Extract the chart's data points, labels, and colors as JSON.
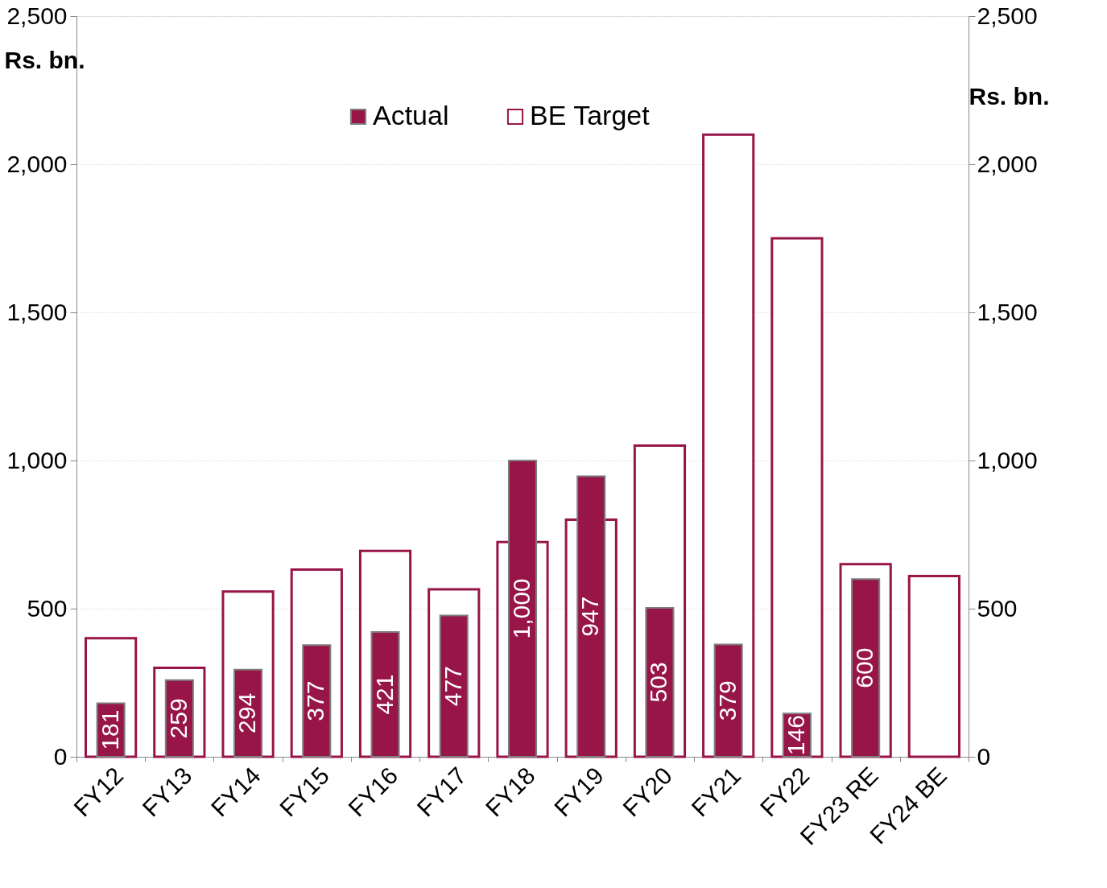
{
  "chart_data": {
    "type": "bar",
    "categories": [
      "FY12",
      "FY13",
      "FY14",
      "FY15",
      "FY16",
      "FY17",
      "FY18",
      "FY19",
      "FY20",
      "FY21",
      "FY22",
      "FY23 RE",
      "FY24 BE"
    ],
    "series": [
      {
        "name": "Actual",
        "color": "#981548",
        "values": [
          181,
          259,
          294,
          377,
          421,
          477,
          1000,
          947,
          503,
          379,
          146,
          600,
          null
        ],
        "value_labels": [
          "181",
          "259",
          "294",
          "377",
          "421",
          "477",
          "1,000",
          "947",
          "503",
          "379",
          "146",
          "600",
          null
        ]
      },
      {
        "name": "BE Target",
        "color": "#981548",
        "values": [
          400,
          300,
          558,
          632,
          695,
          565,
          725,
          800,
          1050,
          2100,
          1750,
          650,
          610
        ]
      }
    ],
    "ylabel": "Rs. bn.",
    "y2label": "Rs. bn.",
    "ylim": [
      0,
      2500
    ],
    "yticks": [
      {
        "value": 0,
        "label": "0"
      },
      {
        "value": 500,
        "label": "500"
      },
      {
        "value": 1000,
        "label": "1,000"
      },
      {
        "value": 1500,
        "label": "1,500"
      },
      {
        "value": 2000,
        "label": "2,000"
      },
      {
        "value": 2500,
        "label": "2,500"
      }
    ],
    "y2lim": [
      0,
      2500
    ],
    "y2ticks": [
      {
        "value": 0,
        "label": "0"
      },
      {
        "value": 500,
        "label": "500"
      },
      {
        "value": 1000,
        "label": "1,000"
      },
      {
        "value": 1500,
        "label": "1,500"
      },
      {
        "value": 2000,
        "label": "2,000"
      },
      {
        "value": 2500,
        "label": "2,500"
      }
    ],
    "grid": "y",
    "legend": "top"
  }
}
